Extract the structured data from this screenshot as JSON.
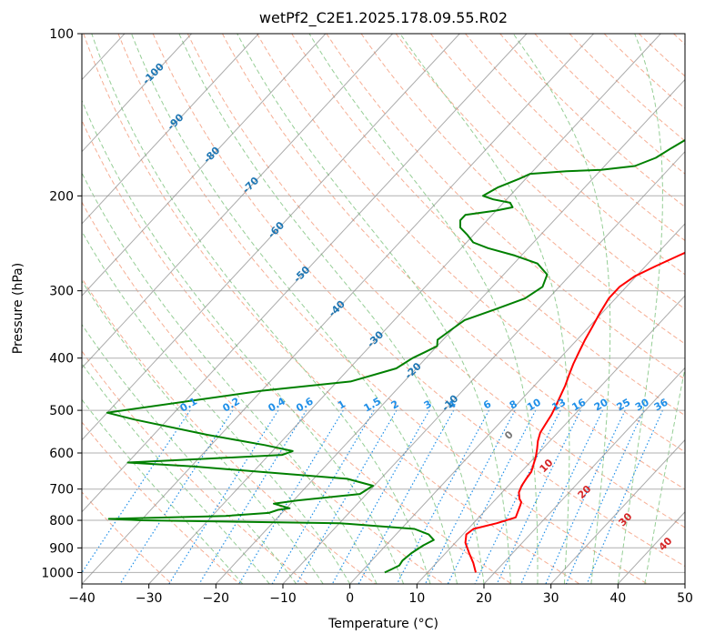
{
  "chart_data": {
    "type": "line",
    "title": "wetPf2_C2E1.2025.178.09.55.R02",
    "xlabel": "Temperature (°C)",
    "ylabel": "Pressure (hPa)",
    "xlim": [
      -40,
      50
    ],
    "ylim": [
      1050,
      100
    ],
    "y_scale": "log",
    "grid": true,
    "x_ticks": [
      -40,
      -30,
      -20,
      -10,
      0,
      10,
      20,
      30,
      40,
      50
    ],
    "y_ticks": [
      100,
      200,
      300,
      400,
      500,
      600,
      700,
      800,
      900,
      1000
    ],
    "colors": {
      "temperature": "#ff0000",
      "dewpoint": "#008000",
      "dry_adiabat": "#f5a081",
      "moist_adiabat": "#8bc98b",
      "mixing_ratio": "#1f8fe8",
      "isotherm": "#888888",
      "isotherm_label": "#1f77b4",
      "dry_label": "#d62728"
    },
    "series": [
      {
        "name": "",
        "role": "temperature",
        "points": [
          [
            17.2,
            1000
          ],
          [
            15.5,
            960
          ],
          [
            13.5,
            920
          ],
          [
            11.5,
            880
          ],
          [
            10.5,
            850
          ],
          [
            10.8,
            830
          ],
          [
            13.5,
            810
          ],
          [
            15.5,
            790
          ],
          [
            15,
            770
          ],
          [
            14.5,
            750
          ],
          [
            14.2,
            740
          ],
          [
            13.5,
            730
          ],
          [
            12.5,
            710
          ],
          [
            12,
            690
          ],
          [
            11.7,
            670
          ],
          [
            11.5,
            650
          ],
          [
            10.8,
            630
          ],
          [
            10.1,
            610
          ],
          [
            9.2,
            590
          ],
          [
            8.2,
            570
          ],
          [
            7.4,
            550
          ],
          [
            7,
            530
          ],
          [
            6.6,
            510
          ],
          [
            6,
            490
          ],
          [
            5.3,
            470
          ],
          [
            4.6,
            450
          ],
          [
            3.7,
            430
          ],
          [
            2.8,
            410
          ],
          [
            2,
            390
          ],
          [
            1.2,
            370
          ],
          [
            0.5,
            350
          ],
          [
            -0.3,
            330
          ],
          [
            -1,
            310
          ],
          [
            -1,
            295
          ],
          [
            -0.2,
            282
          ],
          [
            1.5,
            270
          ],
          [
            3.5,
            258
          ],
          [
            5.8,
            245
          ],
          [
            7.5,
            232
          ],
          [
            8.8,
            220
          ],
          [
            10.3,
            207
          ],
          [
            12.2,
            197
          ],
          [
            12.8,
            188
          ],
          [
            12.3,
            178
          ],
          [
            11.7,
            170
          ],
          [
            11.3,
            162
          ],
          [
            11.5,
            155
          ],
          [
            12.3,
            147
          ],
          [
            12.5,
            140
          ],
          [
            12.2,
            133
          ],
          [
            12.5,
            126
          ],
          [
            13.3,
            120
          ],
          [
            14,
            115
          ],
          [
            16,
            109
          ],
          [
            18,
            103
          ],
          [
            18.8,
            100
          ]
        ]
      },
      {
        "name": "",
        "role": "dewpoint",
        "points": [
          [
            3.6,
            1000
          ],
          [
            4.2,
            985
          ],
          [
            4.8,
            970
          ],
          [
            4.6,
            950
          ],
          [
            4.9,
            920
          ],
          [
            5.6,
            890
          ],
          [
            6.4,
            870
          ],
          [
            4.9,
            850
          ],
          [
            2,
            830
          ],
          [
            -10,
            810
          ],
          [
            -40,
            800
          ],
          [
            -45,
            795
          ],
          [
            -28,
            785
          ],
          [
            -22,
            775
          ],
          [
            -21,
            765
          ],
          [
            -19.5,
            760
          ],
          [
            -22.5,
            745
          ],
          [
            -19.5,
            735
          ],
          [
            -11,
            715
          ],
          [
            -10.2,
            690
          ],
          [
            -15,
            670
          ],
          [
            -40,
            635
          ],
          [
            -50,
            625
          ],
          [
            -39,
            615
          ],
          [
            -28,
            605
          ],
          [
            -27,
            595
          ],
          [
            -32,
            580
          ],
          [
            -42,
            555
          ],
          [
            -55,
            520
          ],
          [
            -60,
            505
          ],
          [
            -40,
            460
          ],
          [
            -28,
            442
          ],
          [
            -23,
            418
          ],
          [
            -22,
            400
          ],
          [
            -21,
            390
          ],
          [
            -20,
            380
          ],
          [
            -20.8,
            370
          ],
          [
            -20.2,
            355
          ],
          [
            -19.5,
            340
          ],
          [
            -16.5,
            325
          ],
          [
            -13.5,
            310
          ],
          [
            -12.5,
            295
          ],
          [
            -13.5,
            280
          ],
          [
            -16.5,
            267
          ],
          [
            -21,
            258
          ],
          [
            -26,
            250
          ],
          [
            -29,
            244
          ],
          [
            -31,
            236
          ],
          [
            -33,
            229
          ],
          [
            -34,
            222
          ],
          [
            -34,
            217
          ],
          [
            -30,
            213
          ],
          [
            -28,
            210
          ],
          [
            -29,
            206
          ],
          [
            -32,
            203
          ],
          [
            -34,
            200
          ],
          [
            -33,
            193
          ],
          [
            -31,
            186
          ],
          [
            -30,
            182
          ],
          [
            -25,
            180
          ],
          [
            -20,
            179
          ],
          [
            -15.5,
            176
          ],
          [
            -13.5,
            170
          ],
          [
            -12.5,
            163
          ],
          [
            -11.5,
            157
          ],
          [
            -10.5,
            151
          ],
          [
            -9,
            145
          ],
          [
            -8,
            140
          ],
          [
            -6.5,
            134
          ],
          [
            -5,
            128
          ],
          [
            -4,
            122
          ],
          [
            -3.5,
            117
          ],
          [
            -3,
            112
          ],
          [
            -2,
            107
          ],
          [
            -0.5,
            102
          ],
          [
            0,
            100
          ]
        ]
      }
    ],
    "isotherm_labels": [
      -100,
      -90,
      -80,
      -70,
      -60,
      -50,
      -40,
      -30,
      -20,
      -10,
      0,
      10,
      20,
      30,
      40
    ],
    "mixing_ratio_labels": [
      "0.1",
      "0.2",
      "0.4",
      "0.6",
      "1",
      "1.5",
      "2",
      "3",
      "4",
      "6",
      "8",
      "10",
      "13",
      "16",
      "20",
      "25",
      "30",
      "36"
    ]
  }
}
